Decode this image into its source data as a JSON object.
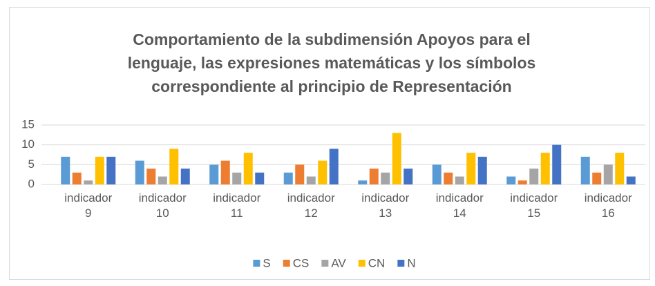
{
  "chart_data": {
    "type": "bar",
    "title": "Comportamiento de la subdimensión Apoyos para el lenguaje, las expresiones matemáticas y los símbolos correspondiente al principio de  Representación",
    "categories": [
      "indicador 9",
      "indicador 10",
      "indicador 11",
      "indicador 12",
      "indicador 13",
      "indicador 14",
      "indicador 15",
      "indicador 16"
    ],
    "series": [
      {
        "name": "S",
        "color": "#5b9bd5",
        "values": [
          7,
          6,
          5,
          3,
          1,
          5,
          2,
          7
        ]
      },
      {
        "name": "CS",
        "color": "#ed7d31",
        "values": [
          3,
          4,
          6,
          5,
          4,
          3,
          1,
          3
        ]
      },
      {
        "name": "AV",
        "color": "#a5a5a5",
        "values": [
          1,
          2,
          3,
          2,
          3,
          2,
          4,
          5
        ]
      },
      {
        "name": "CN",
        "color": "#ffc000",
        "values": [
          7,
          9,
          8,
          6,
          13,
          8,
          8,
          8
        ]
      },
      {
        "name": "N",
        "color": "#4472c4",
        "values": [
          7,
          4,
          3,
          9,
          4,
          7,
          10,
          2
        ]
      }
    ],
    "ylim": [
      0,
      15
    ],
    "yticks": [
      0,
      5,
      10,
      15
    ],
    "grid": true,
    "legend": "bottom"
  }
}
